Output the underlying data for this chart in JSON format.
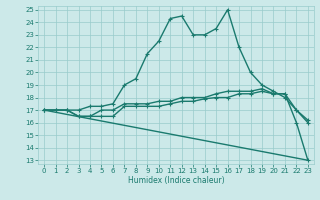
{
  "line1_x": [
    0,
    1,
    2,
    3,
    4,
    5,
    6,
    7,
    8,
    9,
    10,
    11,
    12,
    13,
    14,
    15,
    16,
    17,
    18,
    19,
    20,
    21,
    22,
    23
  ],
  "line1_y": [
    17,
    17,
    17,
    17,
    17.3,
    17.3,
    17.5,
    19,
    19.5,
    21.5,
    22.5,
    24.3,
    24.5,
    23,
    23,
    23.5,
    25,
    22,
    20,
    19,
    18.5,
    18,
    17,
    16.2
  ],
  "line2_x": [
    0,
    1,
    2,
    3,
    4,
    5,
    6,
    7,
    8,
    9,
    10,
    11,
    12,
    13,
    14,
    15,
    16,
    17,
    18,
    19,
    20,
    21,
    22,
    23
  ],
  "line2_y": [
    17,
    17,
    17,
    16.5,
    16.5,
    17,
    17,
    17.5,
    17.5,
    17.5,
    17.7,
    17.7,
    18,
    18,
    18,
    18.3,
    18.5,
    18.5,
    18.5,
    18.7,
    18.3,
    18.3,
    16,
    13
  ],
  "line3_x": [
    0,
    2,
    3,
    4,
    5,
    6,
    7,
    8,
    9,
    10,
    11,
    12,
    13,
    14,
    15,
    16,
    17,
    18,
    19,
    20,
    21,
    22,
    23
  ],
  "line3_y": [
    17,
    17,
    16.5,
    16.5,
    16.5,
    16.5,
    17.3,
    17.3,
    17.3,
    17.3,
    17.5,
    17.7,
    17.7,
    17.9,
    18,
    18,
    18.3,
    18.3,
    18.5,
    18.3,
    18.3,
    17,
    16
  ],
  "line4_x": [
    0,
    23
  ],
  "line4_y": [
    17,
    13
  ],
  "color": "#1a7a6e",
  "bg_color": "#cce9e9",
  "grid_color": "#99cccc",
  "xlim_min": -0.5,
  "xlim_max": 23.5,
  "ylim_min": 12.7,
  "ylim_max": 25.3,
  "xlabel": "Humidex (Indice chaleur)",
  "xticks": [
    0,
    1,
    2,
    3,
    4,
    5,
    6,
    7,
    8,
    9,
    10,
    11,
    12,
    13,
    14,
    15,
    16,
    17,
    18,
    19,
    20,
    21,
    22,
    23
  ],
  "yticks": [
    13,
    14,
    15,
    16,
    17,
    18,
    19,
    20,
    21,
    22,
    23,
    24,
    25
  ]
}
